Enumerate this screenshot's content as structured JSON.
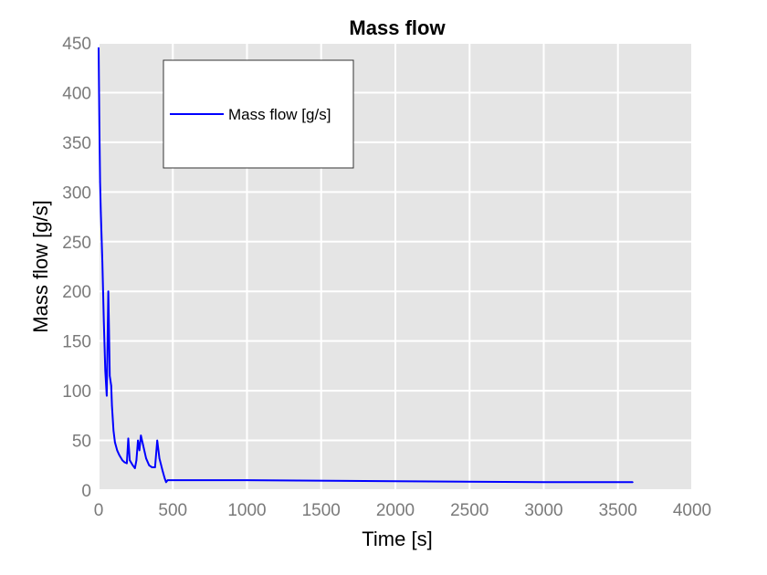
{
  "chart_data": {
    "type": "line",
    "title": "Mass flow",
    "xlabel": "Time [s]",
    "ylabel": "Mass flow [g/s]",
    "xlim": [
      0,
      4000
    ],
    "ylim": [
      0,
      450
    ],
    "x_ticks": [
      0,
      500,
      1000,
      1500,
      2000,
      2500,
      3000,
      3500,
      4000
    ],
    "y_ticks": [
      0,
      50,
      100,
      150,
      200,
      250,
      300,
      350,
      400,
      450
    ],
    "grid": true,
    "legend": {
      "entries": [
        "Mass flow [g/s]"
      ],
      "placement": "top-left"
    },
    "series": [
      {
        "name": "Mass flow [g/s]",
        "color": "#0000ff",
        "points": [
          [
            0,
            445
          ],
          [
            5,
            370
          ],
          [
            10,
            310
          ],
          [
            15,
            280
          ],
          [
            25,
            230
          ],
          [
            35,
            170
          ],
          [
            45,
            120
          ],
          [
            55,
            95
          ],
          [
            60,
            150
          ],
          [
            65,
            200
          ],
          [
            70,
            160
          ],
          [
            75,
            115
          ],
          [
            85,
            105
          ],
          [
            90,
            85
          ],
          [
            100,
            60
          ],
          [
            110,
            48
          ],
          [
            125,
            40
          ],
          [
            140,
            35
          ],
          [
            160,
            30
          ],
          [
            175,
            28
          ],
          [
            190,
            27
          ],
          [
            200,
            52
          ],
          [
            210,
            30
          ],
          [
            230,
            25
          ],
          [
            245,
            22
          ],
          [
            255,
            30
          ],
          [
            265,
            50
          ],
          [
            275,
            40
          ],
          [
            285,
            55
          ],
          [
            300,
            45
          ],
          [
            320,
            32
          ],
          [
            340,
            25
          ],
          [
            360,
            23
          ],
          [
            380,
            23
          ],
          [
            395,
            50
          ],
          [
            410,
            32
          ],
          [
            430,
            20
          ],
          [
            445,
            12
          ],
          [
            455,
            8
          ],
          [
            465,
            10
          ],
          [
            475,
            10
          ],
          [
            1000,
            10
          ],
          [
            2000,
            9
          ],
          [
            3000,
            8
          ],
          [
            3600,
            8
          ]
        ]
      }
    ]
  }
}
